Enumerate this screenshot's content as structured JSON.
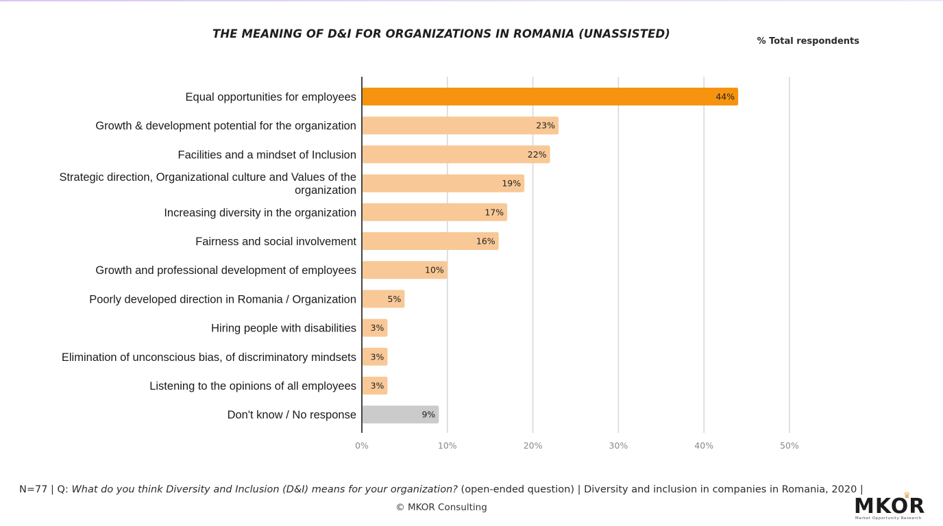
{
  "chart_data": {
    "type": "bar",
    "orientation": "horizontal",
    "title": "THE MEANING OF D&I FOR ORGANIZATIONS IN ROMANIA (UNASSISTED)",
    "unit_note": "% Total respondents",
    "categories": [
      [
        "Equal opportunities for employees"
      ],
      [
        "Growth & development potential for the organization"
      ],
      [
        "Facilities and a mindset of Inclusion"
      ],
      [
        "Strategic direction, Organizational culture and Values of the",
        "organization"
      ],
      [
        "Increasing diversity in the organization"
      ],
      [
        "Fairness and social involvement"
      ],
      [
        "Growth and professional development of employees"
      ],
      [
        "Poorly developed direction in Romania / Organization"
      ],
      [
        "Hiring people with disabilities"
      ],
      [
        "Elimination of unconscious bias, of discriminatory mindsets"
      ],
      [
        "Listening to the opinions of all employees"
      ],
      [
        "Don't know / No response"
      ]
    ],
    "values": [
      44,
      23,
      22,
      19,
      17,
      16,
      10,
      5,
      3,
      3,
      3,
      9
    ],
    "value_labels": [
      "44%",
      "23%",
      "22%",
      "19%",
      "17%",
      "16%",
      "10%",
      "5%",
      "3%",
      "3%",
      "3%",
      "9%"
    ],
    "bar_colors": [
      "#f7940f",
      "#f8c896",
      "#f8c896",
      "#f8c896",
      "#f8c896",
      "#f8c896",
      "#f8c896",
      "#f8c896",
      "#f8c896",
      "#f8c896",
      "#f8c896",
      "#cbcbcb"
    ],
    "xlim": [
      0,
      50
    ],
    "xticks": [
      0,
      10,
      20,
      30,
      40,
      50
    ],
    "xtick_labels": [
      "0%",
      "10%",
      "20%",
      "30%",
      "40%",
      "50%"
    ],
    "grid": true,
    "xlabel": "",
    "ylabel": ""
  },
  "footer": {
    "prefix": "N=77 | Q: ",
    "question": "What do you think Diversity and Inclusion (D&I) means for your organization?",
    "suffix": " (open-ended question) | Diversity and inclusion in companies in Romania, 2020 |",
    "copyright": "© MKOR Consulting"
  },
  "logo": {
    "name": "MKOR",
    "tagline": "Market Opportunity Research"
  },
  "colors": {
    "highlight": "#f7940f",
    "bar": "#f8c896",
    "no_response": "#cbcbcb",
    "grid": "#d6d6d6",
    "axis": "#444444",
    "tick_text": "#888888"
  }
}
